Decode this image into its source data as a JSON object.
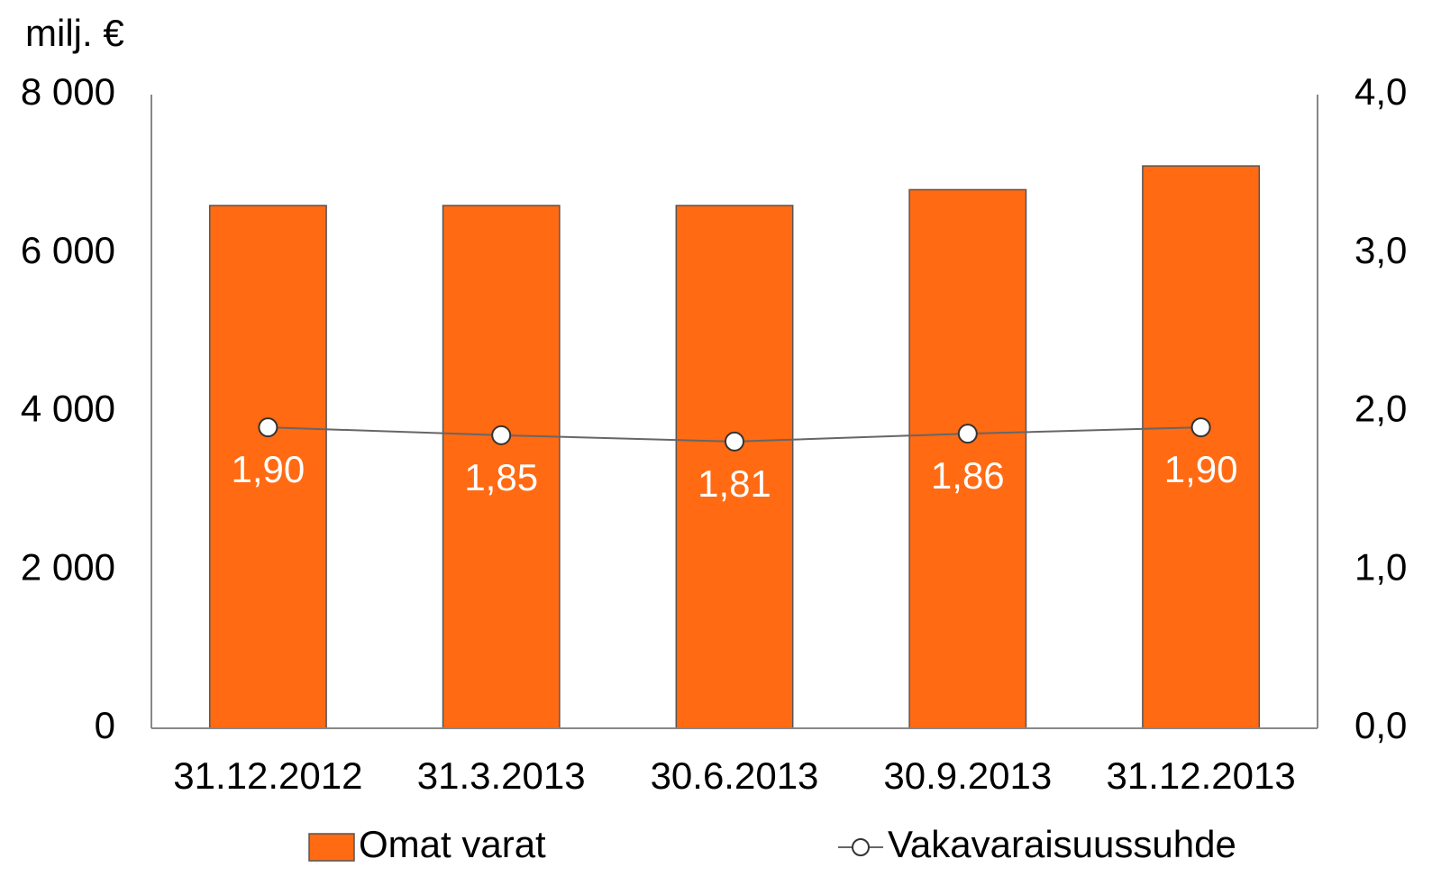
{
  "chart_data": {
    "type": "bar",
    "y_label": "milj. €",
    "categories": [
      "31.12.2012",
      "31.3.2013",
      "30.6.2013",
      "30.9.2013",
      "31.12.2013"
    ],
    "series": [
      {
        "name": "Omat varat",
        "type": "bar",
        "color": "#ff6a13",
        "values": [
          6600,
          6600,
          6600,
          6800,
          7100
        ]
      },
      {
        "name": "Vakavaraisuussuhde",
        "type": "line",
        "axis": "y2",
        "color": "#666666",
        "values": [
          1.9,
          1.85,
          1.81,
          1.86,
          1.9
        ],
        "value_labels": [
          "1,90",
          "1,85",
          "1,81",
          "1,86",
          "1,90"
        ]
      }
    ],
    "ylim": [
      0,
      8000
    ],
    "yticks": [
      {
        "value": 0,
        "label": "0"
      },
      {
        "value": 2000,
        "label": "2 000"
      },
      {
        "value": 4000,
        "label": "4 000"
      },
      {
        "value": 6000,
        "label": "6 000"
      },
      {
        "value": 8000,
        "label": "8 000"
      }
    ],
    "y2lim": [
      0,
      4
    ],
    "y2ticks": [
      {
        "value": 0,
        "label": "0,0"
      },
      {
        "value": 1,
        "label": "1,0"
      },
      {
        "value": 2,
        "label": "2,0"
      },
      {
        "value": 3,
        "label": "3,0"
      },
      {
        "value": 4,
        "label": "4,0"
      }
    ],
    "legend": "bottom",
    "grid": false
  }
}
